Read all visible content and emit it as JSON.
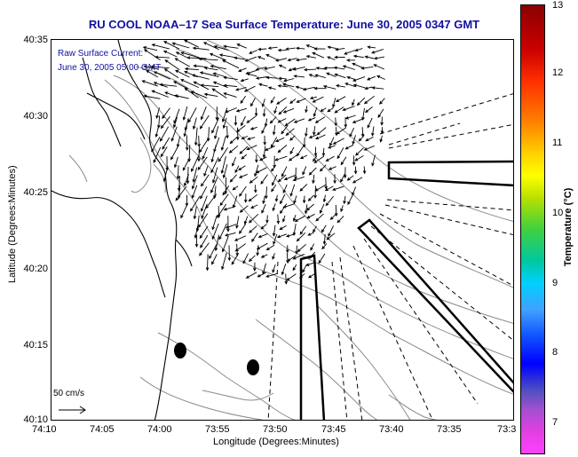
{
  "title": "RU COOL  NOAA–17  Sea Surface Temperature:  June 30, 2005 0347 GMT",
  "legend": {
    "line1": "Raw Surface Current:",
    "line2": "June 30, 2005 05:00 GMT"
  },
  "scale_label": "50 cm/s",
  "axes": {
    "y_title": "Latitude (Degrees:Minutes)",
    "x_title": "Longitude (Degrees:Minutes)",
    "y_ticks": [
      "40:35",
      "40:30",
      "40:25",
      "40:20",
      "40:15",
      "40:10"
    ],
    "x_ticks": [
      "74:10",
      "74:05",
      "74:00",
      "73:55",
      "73:50",
      "73:45",
      "73:40",
      "73:35",
      "73:3"
    ]
  },
  "colorbar": {
    "title": "Temperature (°C)",
    "ticks": [
      "13",
      "12",
      "11",
      "10",
      "9",
      "8",
      "7"
    ]
  },
  "colors": {
    "title": "#1010a0",
    "coast": "#000000",
    "contour": "#888888"
  }
}
